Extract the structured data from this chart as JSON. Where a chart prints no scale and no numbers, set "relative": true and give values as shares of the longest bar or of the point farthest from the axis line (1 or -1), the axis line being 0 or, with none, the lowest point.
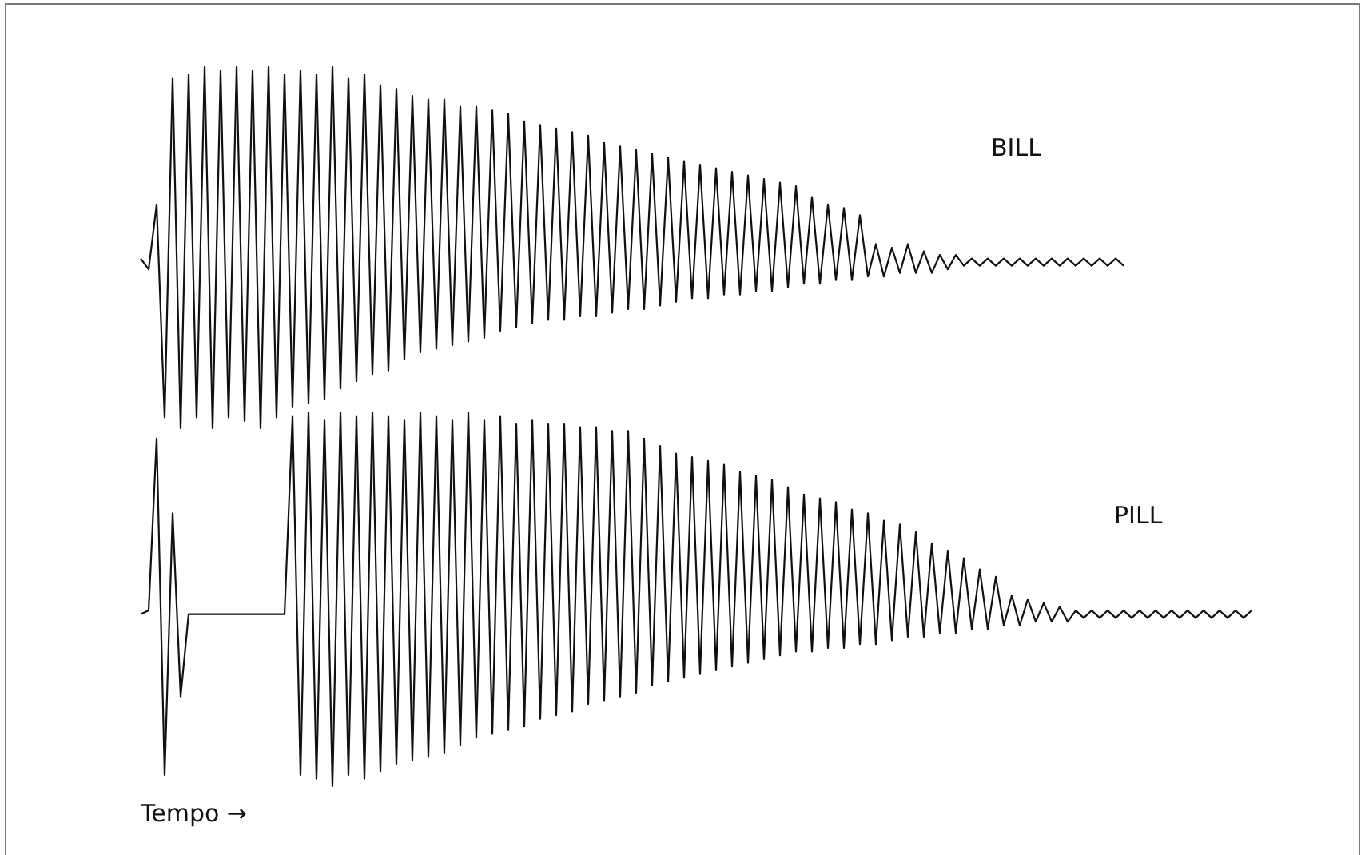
{
  "chart_data": [
    {
      "type": "line",
      "relative": true,
      "categories": [
        null,
        null,
        null,
        null,
        null,
        null,
        null,
        null,
        null,
        null,
        null,
        null,
        null,
        null,
        null,
        null,
        null,
        null,
        null,
        null,
        null,
        null,
        null,
        null,
        null,
        null,
        null,
        null,
        null,
        null,
        null,
        null,
        null,
        null,
        null,
        null,
        null,
        null,
        null,
        null,
        null,
        null,
        null,
        null,
        null,
        null,
        null,
        null,
        null,
        null,
        null,
        null,
        null,
        null,
        null,
        null,
        null,
        null,
        null,
        null,
        null,
        null,
        null,
        null,
        null,
        null,
        null,
        null,
        null,
        null,
        null,
        null,
        null,
        null,
        null,
        null,
        null,
        null,
        null,
        null,
        null,
        null,
        null,
        null,
        null,
        null,
        null,
        null,
        null,
        null,
        null,
        null,
        null,
        null,
        null,
        null,
        null,
        null,
        null,
        null,
        null,
        null,
        null,
        null,
        null,
        null,
        null,
        null,
        null,
        null,
        null,
        null,
        null,
        null,
        null,
        null,
        null,
        null,
        null,
        null,
        null,
        null,
        null,
        null,
        null,
        null,
        null,
        null,
        null,
        null,
        null,
        null,
        null,
        null,
        null,
        null,
        null,
        null,
        null,
        null
      ],
      "series": [
        {
          "name": "BILL",
          "color": "#111111",
          "values": [
            0.47,
            0.44,
            0.62,
            0.03,
            0.97,
            0.0,
            0.98,
            0.03,
            1.0,
            0.0,
            0.99,
            0.03,
            1.0,
            0.02,
            0.99,
            0.0,
            1.0,
            0.03,
            0.98,
            0.06,
            0.99,
            0.07,
            0.98,
            0.08,
            1.0,
            0.11,
            0.97,
            0.13,
            0.98,
            0.15,
            0.95,
            0.16,
            0.94,
            0.19,
            0.92,
            0.21,
            0.91,
            0.22,
            0.91,
            0.23,
            0.89,
            0.24,
            0.89,
            0.25,
            0.88,
            0.27,
            0.87,
            0.28,
            0.85,
            0.29,
            0.84,
            0.3,
            0.83,
            0.3,
            0.82,
            0.31,
            0.81,
            0.31,
            0.79,
            0.32,
            0.78,
            0.33,
            0.77,
            0.33,
            0.76,
            0.34,
            0.75,
            0.35,
            0.74,
            0.36,
            0.73,
            0.36,
            0.72,
            0.37,
            0.71,
            0.37,
            0.7,
            0.38,
            0.69,
            0.38,
            0.68,
            0.39,
            0.67,
            0.4,
            0.64,
            0.4,
            0.62,
            0.41,
            0.61,
            0.41,
            0.59,
            0.42,
            0.51,
            0.42,
            0.5,
            0.43,
            0.51,
            0.43,
            0.49,
            0.43,
            0.48,
            0.44,
            0.48,
            0.45,
            0.47,
            0.45,
            0.47,
            0.45,
            0.47,
            0.45,
            0.47,
            0.45,
            0.47,
            0.45,
            0.47,
            0.45,
            0.47,
            0.45,
            0.47,
            0.45,
            0.47,
            0.45,
            0.47,
            0.45,
            null,
            null,
            null,
            null,
            null,
            null,
            null,
            null,
            null,
            null,
            null,
            null,
            null,
            null,
            null,
            null
          ]
        }
      ],
      "line_style": "solid",
      "legend": false,
      "tick_labels": false
    },
    {
      "type": "line",
      "relative": true,
      "xlabel": "Tempo →",
      "categories": [
        null,
        null,
        null,
        null,
        null,
        null,
        null,
        null,
        null,
        null,
        null,
        null,
        null,
        null,
        null,
        null,
        null,
        null,
        null,
        null,
        null,
        null,
        null,
        null,
        null,
        null,
        null,
        null,
        null,
        null,
        null,
        null,
        null,
        null,
        null,
        null,
        null,
        null,
        null,
        null,
        null,
        null,
        null,
        null,
        null,
        null,
        null,
        null,
        null,
        null,
        null,
        null,
        null,
        null,
        null,
        null,
        null,
        null,
        null,
        null,
        null,
        null,
        null,
        null,
        null,
        null,
        null,
        null,
        null,
        null,
        null,
        null,
        null,
        null,
        null,
        null,
        null,
        null,
        null,
        null,
        null,
        null,
        null,
        null,
        null,
        null,
        null,
        null,
        null,
        null,
        null,
        null,
        null,
        null,
        null,
        null,
        null,
        null,
        null,
        null,
        null,
        null,
        null,
        null,
        null,
        null,
        null,
        null,
        null,
        null,
        null,
        null,
        null,
        null,
        null,
        null,
        null,
        null,
        null,
        null,
        null,
        null,
        null,
        null,
        null,
        null,
        null,
        null,
        null,
        null,
        null,
        null,
        null,
        null,
        null,
        null,
        null,
        null,
        null,
        null
      ],
      "series": [
        {
          "name": "PILL",
          "color": "#111111",
          "values": [
            0.46,
            0.47,
            0.93,
            0.03,
            0.73,
            0.24,
            0.46,
            0.46,
            0.46,
            0.46,
            0.46,
            0.46,
            0.46,
            0.46,
            0.46,
            0.46,
            0.46,
            0.46,
            0.46,
            0.99,
            0.03,
            1.0,
            0.02,
            0.98,
            0.0,
            1.0,
            0.03,
            0.99,
            0.02,
            1.0,
            0.04,
            0.99,
            0.06,
            0.98,
            0.07,
            1.0,
            0.08,
            0.99,
            0.09,
            0.98,
            0.11,
            1.0,
            0.13,
            0.98,
            0.14,
            0.99,
            0.15,
            0.97,
            0.16,
            0.98,
            0.18,
            0.97,
            0.19,
            0.97,
            0.2,
            0.96,
            0.22,
            0.96,
            0.23,
            0.95,
            0.24,
            0.95,
            0.25,
            0.93,
            0.27,
            0.91,
            0.28,
            0.89,
            0.29,
            0.88,
            0.3,
            0.87,
            0.31,
            0.86,
            0.32,
            0.84,
            0.33,
            0.83,
            0.34,
            0.82,
            0.35,
            0.8,
            0.36,
            0.78,
            0.36,
            0.77,
            0.37,
            0.76,
            0.37,
            0.74,
            0.38,
            0.73,
            0.38,
            0.71,
            0.39,
            0.7,
            0.4,
            0.68,
            0.4,
            0.65,
            0.41,
            0.63,
            0.41,
            0.61,
            0.42,
            0.58,
            0.42,
            0.56,
            0.43,
            0.51,
            0.43,
            0.5,
            0.44,
            0.49,
            0.44,
            0.48,
            0.44,
            0.47,
            0.45,
            0.47,
            0.45,
            0.47,
            0.45,
            0.47,
            0.45,
            0.47,
            0.45,
            0.47,
            0.45,
            0.47,
            0.45,
            0.47,
            0.45,
            0.47,
            0.45,
            0.47,
            0.45,
            0.47,
            0.45,
            0.47
          ]
        }
      ],
      "line_style": "solid",
      "legend": false,
      "tick_labels": false
    }
  ]
}
